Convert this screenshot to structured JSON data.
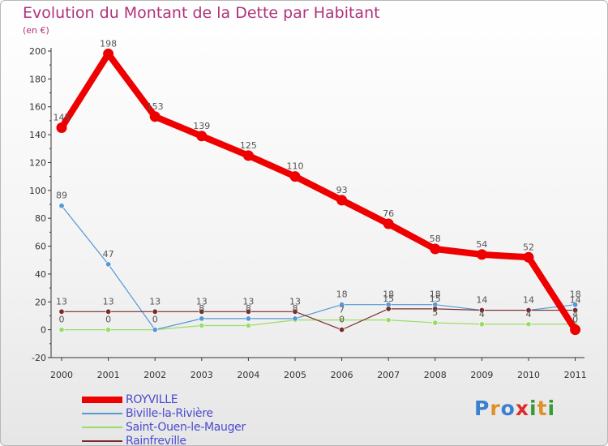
{
  "page": {
    "title": "Evolution du Montant de la Dette par Habitant",
    "unit": "(en €)"
  },
  "logo": {
    "text": "Proxiti",
    "letters": [
      {
        "ch": "P",
        "color": "#3a7fd0"
      },
      {
        "ch": "r",
        "color": "#e0902a"
      },
      {
        "ch": "o",
        "color": "#3a7fd0"
      },
      {
        "ch": "x",
        "color": "#e02a2a"
      },
      {
        "ch": "i",
        "color": "#3a9a3a"
      },
      {
        "ch": "t",
        "color": "#e0902a"
      },
      {
        "ch": "i",
        "color": "#3a9a3a"
      }
    ]
  },
  "chart_data": {
    "type": "line",
    "title": "Evolution du Montant de la Dette par Habitant",
    "ylabel": "(en €)",
    "x": [
      "2000",
      "2001",
      "2002",
      "2003",
      "2004",
      "2005",
      "2006",
      "2007",
      "2008",
      "2009",
      "2010",
      "2011"
    ],
    "ylim": [
      -20,
      200
    ],
    "yticks": [
      -20,
      0,
      20,
      40,
      60,
      80,
      100,
      120,
      140,
      160,
      180,
      200
    ],
    "grid": false,
    "legend_position": "bottom-left",
    "series": [
      {
        "name": "Saint-Ouen-le-Mauger",
        "color": "#99dd66",
        "values": [
          0,
          0,
          0,
          3,
          3,
          7,
          7,
          7,
          5,
          4,
          4,
          4
        ],
        "labels": [
          "",
          "",
          "",
          "",
          "",
          "",
          "",
          "",
          "5",
          "4",
          "4",
          "4"
        ]
      },
      {
        "name": "Biville-la-Rivière",
        "color": "#5599d5",
        "values": [
          89,
          47,
          0,
          8,
          8,
          8,
          18,
          18,
          18,
          14,
          14,
          18
        ],
        "labels": [
          "89",
          "47",
          "",
          "8",
          "8",
          "8",
          "18",
          "18",
          "18",
          "",
          "",
          "18"
        ]
      },
      {
        "name": "Rainfreville",
        "color": "#7a2a2a",
        "values": [
          13,
          13,
          13,
          13,
          13,
          13,
          0,
          15,
          15,
          14,
          14,
          14
        ],
        "labels": [
          "13",
          "13",
          "13",
          "13",
          "13",
          "13",
          "0",
          "15",
          "15",
          "14",
          "14",
          "14"
        ]
      },
      {
        "name": "ROYVILLE",
        "color": "#ee0000",
        "values": [
          145,
          198,
          153,
          139,
          125,
          110,
          93,
          76,
          58,
          54,
          52,
          0
        ],
        "labels": [
          "145",
          "198",
          "153",
          "139",
          "125",
          "110",
          "93",
          "76",
          "58",
          "54",
          "52",
          "0"
        ]
      }
    ],
    "extra_labels": [
      {
        "x_index": 0,
        "y": 0,
        "text": "0"
      },
      {
        "x_index": 1,
        "y": 0,
        "text": "0"
      },
      {
        "x_index": 2,
        "y": 0,
        "text": "0"
      },
      {
        "x_index": 6,
        "y": 7,
        "text": "7"
      }
    ]
  },
  "legend": {
    "items": [
      {
        "label": "ROYVILLE",
        "color": "#ee0000",
        "thick": true
      },
      {
        "label": "Biville-la-Rivière",
        "color": "#5599d5",
        "thick": false
      },
      {
        "label": "Saint-Ouen-le-Mauger",
        "color": "#99dd66",
        "thick": false
      },
      {
        "label": "Rainfreville",
        "color": "#7a2a2a",
        "thick": false
      }
    ]
  }
}
